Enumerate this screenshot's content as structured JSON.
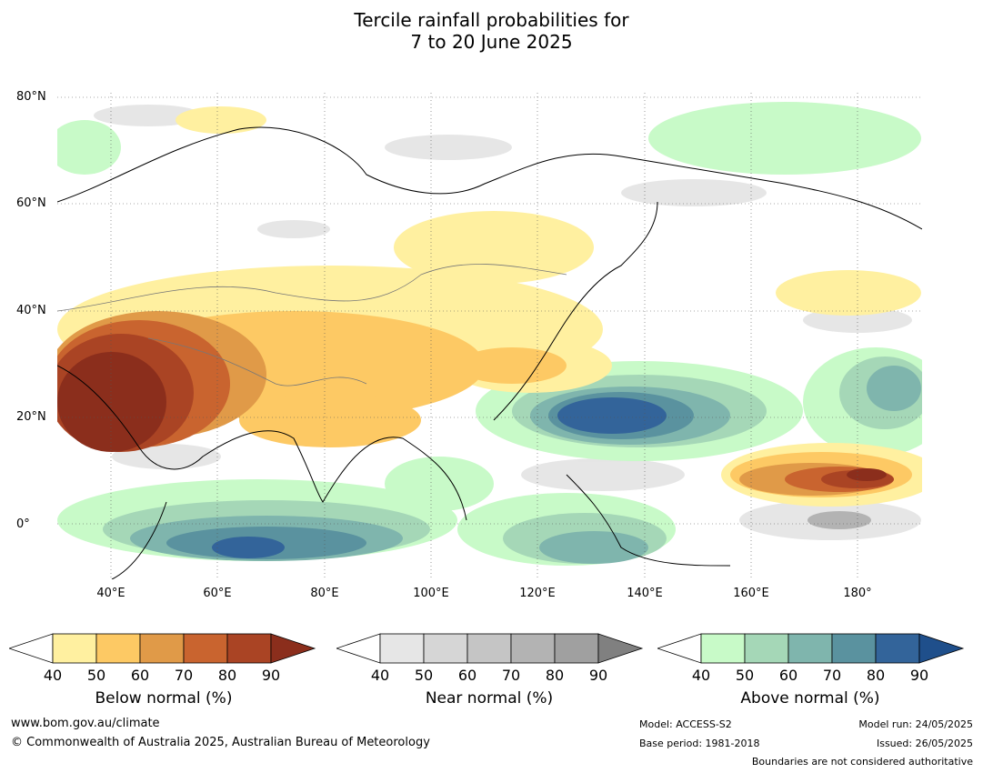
{
  "title": {
    "line1": "Tercile rainfall probabilities for",
    "line2": "7 to 20 June 2025"
  },
  "lat_labels": [
    "80°N",
    "60°N",
    "40°N",
    "20°N",
    "0°"
  ],
  "lon_labels": [
    "40°E",
    "60°E",
    "80°E",
    "100°E",
    "120°E",
    "140°E",
    "160°E",
    "180°"
  ],
  "colorbars": [
    {
      "label": "Below normal (%)",
      "ticks": [
        "40",
        "50",
        "60",
        "70",
        "80",
        "90"
      ],
      "colors": [
        "#fff0a0",
        "#fdc964",
        "#e09a48",
        "#c9642f",
        "#aa4424",
        "#8b2e1c"
      ]
    },
    {
      "label": "Near normal (%)",
      "ticks": [
        "40",
        "50",
        "60",
        "70",
        "80",
        "90"
      ],
      "colors": [
        "#e6e6e6",
        "#d6d6d6",
        "#c5c5c5",
        "#b3b3b3",
        "#a0a0a0",
        "#808080"
      ]
    },
    {
      "label": "Above normal (%)",
      "ticks": [
        "40",
        "50",
        "60",
        "70",
        "80",
        "90"
      ],
      "colors": [
        "#c8fac8",
        "#a5d7b7",
        "#7fb5ad",
        "#5a929f",
        "#33649a",
        "#1f4f8b"
      ]
    }
  ],
  "footer": {
    "website": "www.bom.gov.au/climate",
    "copyright": "© Commonwealth of Australia 2025, Australian Bureau of Meteorology",
    "model": "Model: ACCESS-S2",
    "base_period": "Base period: 1981-2018",
    "model_run": "Model run: 24/05/2025",
    "issued": "Issued: 26/05/2025",
    "disclaimer": "Boundaries are not considered authoritative"
  }
}
